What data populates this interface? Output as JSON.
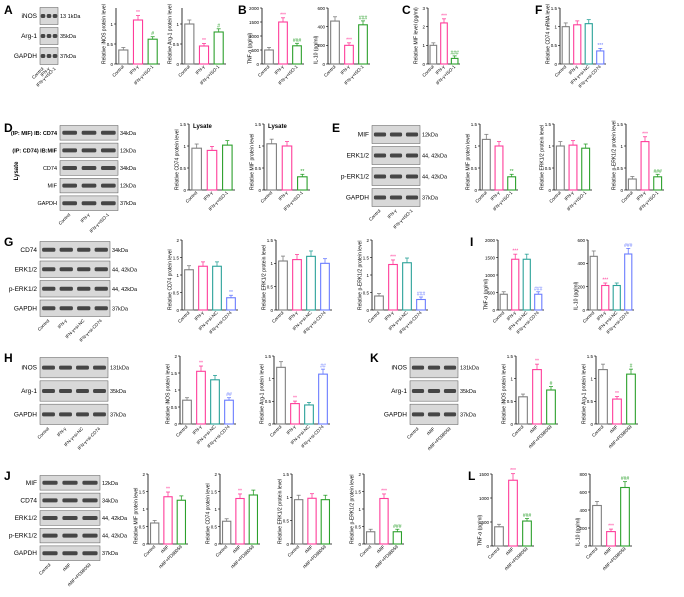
{
  "colors": {
    "control": "#7f7f7f",
    "ifn": "#ff3d9a",
    "iso": "#2ca02c",
    "nc": "#2aa198",
    "sicd": "#6a7cff",
    "rmif": "#ff3d9a",
    "pd": "#2ca02c",
    "black": "#000000"
  },
  "panels": {
    "A": {
      "letter": "A",
      "wb": {
        "rows": [
          {
            "label": "iNOS",
            "kda": "13 1kDa"
          },
          {
            "label": "Arg-1",
            "kda": "35kDa"
          },
          {
            "label": "GAPDH",
            "kda": "37kDa"
          }
        ],
        "lanes": [
          "Control",
          "IFN-γ",
          "IFN-γ+ISO-1"
        ]
      },
      "charts": [
        {
          "ylabel": "Relative iNOS protein level",
          "ymax": 1.4,
          "ticks": [
            0,
            0.5,
            1.0
          ],
          "categories": [
            "Control",
            "IFN-γ",
            "IFN-γ+ISO-1"
          ],
          "values": [
            0.35,
            1.1,
            0.62
          ],
          "sig": [
            "",
            "**",
            "#"
          ]
        },
        {
          "ylabel": "Relative Arg-1 protein level",
          "ymax": 1.4,
          "ticks": [
            0,
            0.5,
            1.0
          ],
          "categories": [
            "Control",
            "IFN-γ",
            "IFN-γ+ISO-1"
          ],
          "values": [
            1.0,
            0.45,
            0.8
          ],
          "sig": [
            "",
            "**",
            "#"
          ]
        }
      ]
    },
    "B": {
      "letter": "B",
      "charts": [
        {
          "ylabel": "TNF-α (pg/ml)",
          "ymax": 2000,
          "ticks": [
            0,
            500,
            1000,
            1500,
            2000
          ],
          "categories": [
            "Control",
            "IFN-γ",
            "IFN-γ+ISO-1"
          ],
          "values": [
            500,
            1500,
            650
          ],
          "sig": [
            "",
            "***",
            "###"
          ]
        },
        {
          "ylabel": "IL-10 (pg/ml)",
          "ymax": 600,
          "ticks": [
            0,
            200,
            400,
            600
          ],
          "categories": [
            "Control",
            "IFN-γ",
            "IFN-γ+ISO-1"
          ],
          "values": [
            460,
            200,
            420
          ],
          "sig": [
            "",
            "***",
            "###"
          ]
        }
      ]
    },
    "C": {
      "letter": "C",
      "charts": [
        {
          "ylabel": "Relative MIF level (pg/ml)",
          "ymax": 3,
          "ticks": [
            0,
            1,
            2,
            3
          ],
          "categories": [
            "Control",
            "IFN-γ",
            "IFN-γ+ISO-1"
          ],
          "values": [
            1.0,
            2.2,
            0.3
          ],
          "sig": [
            "",
            "***",
            "###"
          ]
        }
      ]
    },
    "F": {
      "letter": "F",
      "charts": [
        {
          "ylabel": "Relative CD74 mRNA level",
          "ymax": 1.5,
          "ticks": [
            0,
            0.5,
            1.0,
            1.5
          ],
          "categories": [
            "Control",
            "IFN-γ",
            "IFN-γ+si-NC",
            "IFN-γ+si-CD74"
          ],
          "values": [
            1.0,
            1.05,
            1.08,
            0.35
          ],
          "sig": [
            "",
            "",
            "",
            "***"
          ]
        }
      ]
    },
    "D": {
      "letter": "D",
      "wb": {
        "rows": [
          {
            "label": "(IP: MIF) IB: CD74",
            "kda": "34kDa"
          },
          {
            "label": "(IP: CD74) IB:MIF",
            "kda": "12kDa"
          },
          {
            "label": "CD74",
            "kda": "34kDa"
          },
          {
            "label": "MIF",
            "kda": "12kDa"
          },
          {
            "label": "GAPDH",
            "kda": "37kDa"
          }
        ],
        "lanes": [
          "Control",
          "IFN-γ",
          "IFN-γ+ISO-1"
        ],
        "side": "Lysate"
      },
      "charts": [
        {
          "ylabel": "Relative CD74 protein level",
          "title": "Lysate",
          "ymax": 1.5,
          "ticks": [
            0,
            0.5,
            1.0,
            1.5
          ],
          "categories": [
            "Control",
            "IFN-γ",
            "IFN-γ+ISO-1"
          ],
          "values": [
            0.95,
            0.9,
            1.02
          ],
          "sig": [
            "",
            "",
            ""
          ]
        },
        {
          "ylabel": "Relative MIF protein level",
          "title": "Lysate",
          "ymax": 1.5,
          "ticks": [
            0,
            0.5,
            1.0,
            1.5
          ],
          "categories": [
            "Control",
            "IFN-γ",
            "IFN-γ+ISO-1"
          ],
          "values": [
            1.05,
            1.0,
            0.3
          ],
          "sig": [
            "",
            "",
            "**"
          ]
        }
      ]
    },
    "E": {
      "letter": "E",
      "wb": {
        "rows": [
          {
            "label": "MIF",
            "kda": "12kDa"
          },
          {
            "label": "ERK1/2",
            "kda": "44, 42kDa"
          },
          {
            "label": "p-ERK1/2",
            "kda": "44, 42kDa"
          },
          {
            "label": "GAPDH",
            "kda": "37kDa"
          }
        ],
        "lanes": [
          "Control",
          "IFN-γ",
          "IFN-γ+ISO-1"
        ]
      },
      "charts": [
        {
          "ylabel": "Relative MIF protein level",
          "ymax": 1.5,
          "ticks": [
            0,
            0.5,
            1.0,
            1.5
          ],
          "categories": [
            "Control",
            "IFN-γ",
            "IFN-γ+ISO-1"
          ],
          "values": [
            1.15,
            1.0,
            0.3
          ],
          "sig": [
            "",
            "",
            "**"
          ]
        },
        {
          "ylabel": "Relative ERK1/2 protein level",
          "ymax": 1.5,
          "ticks": [
            0,
            0.5,
            1.0,
            1.5
          ],
          "categories": [
            "Control",
            "IFN-γ",
            "IFN-γ+ISO-1"
          ],
          "values": [
            1.0,
            1.02,
            0.95
          ],
          "sig": [
            "",
            "",
            ""
          ]
        },
        {
          "ylabel": "Relative p-ERK1/2 protein level",
          "ymax": 1.5,
          "ticks": [
            0,
            0.5,
            1.0,
            1.5
          ],
          "categories": [
            "Control",
            "IFN-γ",
            "IFN-γ+ISO-1"
          ],
          "values": [
            0.25,
            1.1,
            0.3
          ],
          "sig": [
            "",
            "***",
            "###"
          ]
        }
      ]
    },
    "G": {
      "letter": "G",
      "wb": {
        "rows": [
          {
            "label": "CD74",
            "kda": "34kDa"
          },
          {
            "label": "ERK1/2",
            "kda": "44, 42kDa"
          },
          {
            "label": "p-ERK1/2",
            "kda": "44, 42kDa"
          },
          {
            "label": "GAPDH",
            "kda": "37kDa"
          }
        ],
        "lanes": [
          "Control",
          "IFN-γ",
          "IFN-γ+si-NC",
          "IFN-γ+si-CD74"
        ]
      },
      "charts": [
        {
          "ylabel": "Relative CD74 protein level",
          "ymax": 2.0,
          "ticks": [
            0,
            0.5,
            1.0,
            1.5,
            2.0
          ],
          "categories": [
            "Control",
            "IFN-γ",
            "IFN-γ+si-NC",
            "IFN-γ+si-CD74"
          ],
          "values": [
            1.15,
            1.25,
            1.25,
            0.35
          ],
          "sig": [
            "",
            "",
            "",
            "**"
          ]
        },
        {
          "ylabel": "Relative ERK1/2 protein level",
          "ymax": 1.5,
          "ticks": [
            0,
            0.5,
            1.0,
            1.5
          ],
          "categories": [
            "Control",
            "IFN-γ",
            "IFN-γ+si-NC",
            "IFN-γ+si-CD74"
          ],
          "values": [
            1.05,
            1.08,
            1.15,
            1.0
          ],
          "sig": [
            "",
            "",
            "",
            ""
          ]
        },
        {
          "ylabel": "Relative p-ERK1/2 protein level",
          "ymax": 2.0,
          "ticks": [
            0,
            0.5,
            1.0,
            1.5,
            2.0
          ],
          "categories": [
            "Control",
            "IFN-γ",
            "IFN-γ+si-NC",
            "IFN-γ+si-CD74"
          ],
          "values": [
            0.4,
            1.3,
            1.35,
            0.3
          ],
          "sig": [
            "",
            "***",
            "",
            "###"
          ]
        }
      ]
    },
    "I": {
      "letter": "I",
      "charts": [
        {
          "ylabel": "TNF-α (pg/ml)",
          "ymax": 2000,
          "ticks": [
            0,
            500,
            1000,
            1500,
            2000
          ],
          "categories": [
            "Control",
            "IFN-γ",
            "IFN-γ+si-NC",
            "IFN-γ+si-CD74"
          ],
          "values": [
            450,
            1450,
            1450,
            450
          ],
          "sig": [
            "",
            "***",
            "",
            "###"
          ]
        },
        {
          "ylabel": "IL-10 (pg/ml)",
          "ymax": 600,
          "ticks": [
            0,
            200,
            400,
            600
          ],
          "categories": [
            "Control",
            "IFN-γ",
            "IFN-γ+si-NC",
            "IFN-γ+si-CD74"
          ],
          "values": [
            460,
            210,
            210,
            480
          ],
          "sig": [
            "",
            "***",
            "",
            "###"
          ]
        }
      ]
    },
    "H": {
      "letter": "H",
      "wb": {
        "rows": [
          {
            "label": "iNOS",
            "kda": "131kDa"
          },
          {
            "label": "Arg-1",
            "kda": "35kDa"
          },
          {
            "label": "GAPDH",
            "kda": "37kDa"
          }
        ],
        "lanes": [
          "Control",
          "IFN-γ",
          "IFN-γ+si-NC",
          "IFN-γ+si-CD74"
        ]
      },
      "charts": [
        {
          "ylabel": "Relative iNOS protein level",
          "ymax": 2.0,
          "ticks": [
            0,
            0.5,
            1.0,
            1.5,
            2.0
          ],
          "categories": [
            "Control",
            "IFN-γ",
            "IFN-γ+si-NC",
            "IFN-γ+si-CD74"
          ],
          "values": [
            0.7,
            1.55,
            1.3,
            0.7
          ],
          "sig": [
            "",
            "**",
            "",
            "##"
          ]
        },
        {
          "ylabel": "Relative Arg-1 protein level",
          "ymax": 1.5,
          "ticks": [
            0,
            0.5,
            1.0,
            1.5
          ],
          "categories": [
            "Control",
            "IFN-γ",
            "IFN-γ+si-NC",
            "IFN-γ+si-CD74"
          ],
          "values": [
            1.25,
            0.45,
            0.42,
            1.1
          ],
          "sig": [
            "",
            "**",
            "",
            "##"
          ]
        }
      ]
    },
    "K": {
      "letter": "K",
      "wb": {
        "rows": [
          {
            "label": "iNOS",
            "kda": "131kDa"
          },
          {
            "label": "Arg-1",
            "kda": "35kDa"
          },
          {
            "label": "GAPDH",
            "kda": "37kDa"
          }
        ],
        "lanes": [
          "Control",
          "rMIF",
          "rMIF+PD98059"
        ]
      },
      "charts": [
        {
          "ylabel": "Relative iNOS protein level",
          "ymax": 1.5,
          "ticks": [
            0,
            0.5,
            1.0,
            1.5
          ],
          "categories": [
            "Control",
            "rMIF",
            "rMIF+PD98059"
          ],
          "values": [
            0.6,
            1.2,
            0.75
          ],
          "sig": [
            "",
            "**",
            "#"
          ]
        },
        {
          "ylabel": "Relative Arg-1 protein level",
          "ymax": 1.5,
          "ticks": [
            0,
            0.5,
            1.0,
            1.5
          ],
          "categories": [
            "Control",
            "rMIF",
            "rMIF+PD98059"
          ],
          "values": [
            1.2,
            0.55,
            1.1
          ],
          "sig": [
            "",
            "**",
            "#"
          ]
        }
      ]
    },
    "J": {
      "letter": "J",
      "wb": {
        "rows": [
          {
            "label": "MIF",
            "kda": "12kDa"
          },
          {
            "label": "CD74",
            "kda": "34kDa"
          },
          {
            "label": "ERK1/2",
            "kda": "44, 42kDa"
          },
          {
            "label": "p-ERK1/2",
            "kda": "44, 42kDa"
          },
          {
            "label": "GAPDH",
            "kda": "37kDa"
          }
        ],
        "lanes": [
          "Control",
          "rMIF",
          "rMIF+PD98059"
        ]
      },
      "charts": [
        {
          "ylabel": "Relative MIF protein level",
          "ymax": 2.0,
          "ticks": [
            0,
            0.5,
            1.0,
            1.5,
            2.0
          ],
          "categories": [
            "Control",
            "rMIF",
            "rMIF+PD98059"
          ],
          "values": [
            0.6,
            1.35,
            1.25
          ],
          "sig": [
            "",
            "**",
            ""
          ]
        },
        {
          "ylabel": "Relative CD74 protein level",
          "ymax": 2.0,
          "ticks": [
            0,
            0.5,
            1.0,
            1.5,
            2.0
          ],
          "categories": [
            "Control",
            "rMIF",
            "rMIF+PD98059"
          ],
          "values": [
            0.65,
            1.3,
            1.4
          ],
          "sig": [
            "",
            "**",
            ""
          ]
        },
        {
          "ylabel": "Relative ERK1/2 protein level",
          "ymax": 1.5,
          "ticks": [
            0,
            0.5,
            1.0,
            1.5
          ],
          "categories": [
            "Control",
            "rMIF",
            "rMIF+PD98059"
          ],
          "values": [
            0.95,
            0.98,
            0.95
          ],
          "sig": [
            "",
            "",
            ""
          ]
        },
        {
          "ylabel": "Relative p-ERK1/2 protein level",
          "ymax": 2.0,
          "ticks": [
            0,
            0.5,
            1.0,
            1.5,
            2.0
          ],
          "categories": [
            "Control",
            "rMIF",
            "rMIF+PD98059"
          ],
          "values": [
            0.35,
            1.3,
            0.35
          ],
          "sig": [
            "",
            "***",
            "###"
          ]
        }
      ]
    },
    "L": {
      "letter": "L",
      "charts": [
        {
          "ylabel": "TNF-α (pg/ml)",
          "ymax": 1500,
          "ticks": [
            0,
            500,
            1000,
            1500
          ],
          "categories": [
            "Control",
            "rMIF",
            "rMIF+PD98059"
          ],
          "values": [
            400,
            1370,
            520
          ],
          "sig": [
            "",
            "***",
            "###"
          ]
        },
        {
          "ylabel": "IL-10 (pg/ml)",
          "ymax": 800,
          "ticks": [
            0,
            200,
            400,
            600,
            800
          ],
          "categories": [
            "Control",
            "rMIF",
            "rMIF+PD98059"
          ],
          "values": [
            450,
            160,
            650
          ],
          "sig": [
            "",
            "***",
            "###"
          ]
        }
      ]
    }
  }
}
